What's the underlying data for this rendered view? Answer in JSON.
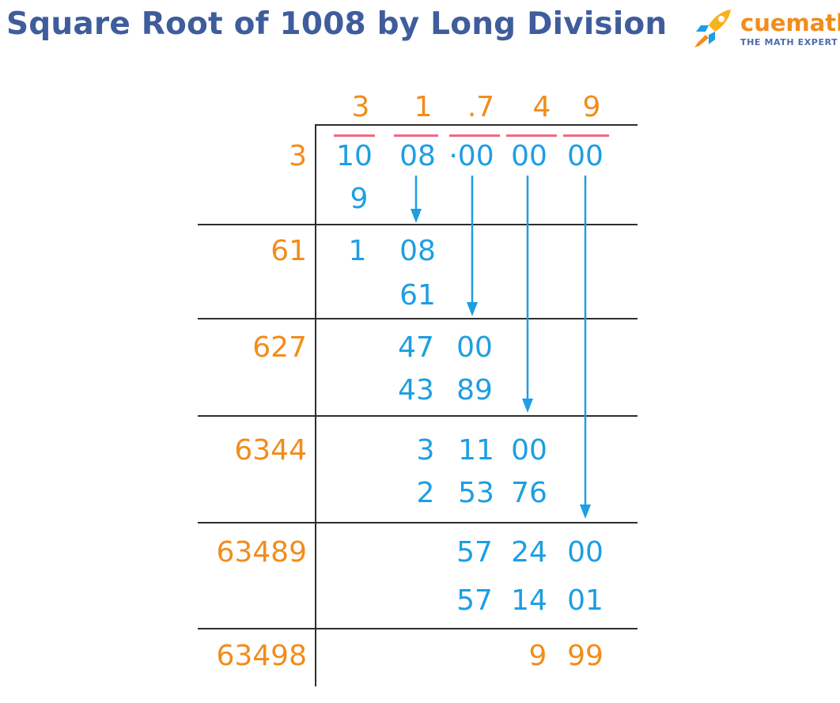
{
  "title": "Square Root of 1008 by Long Division",
  "logo": {
    "name": "cuemath",
    "tagline": "THE MATH EXPERT"
  },
  "quotient": [
    "3",
    "1",
    ".7",
    "4",
    "9"
  ],
  "dividend": [
    "10",
    "08",
    "·00",
    "00",
    "00"
  ],
  "divisors": [
    "3",
    "61",
    "627",
    "6344",
    "63489",
    "63498"
  ],
  "steps": {
    "s1_sub": "9",
    "s2_row1": [
      "1",
      "08"
    ],
    "s2_sub": "61",
    "s3_row1": [
      "47",
      "00"
    ],
    "s3_sub": [
      "43",
      "89"
    ],
    "s4_row1": [
      "3",
      "11",
      "00"
    ],
    "s4_sub": [
      "2",
      "53",
      "76"
    ],
    "s5_row1": [
      "57",
      "24",
      "00"
    ],
    "s5_sub": [
      "57",
      "14",
      "01"
    ],
    "remainder": [
      "9",
      "99"
    ]
  },
  "colors": {
    "title": "#3f5d9c",
    "orange": "#f28c1b",
    "blue": "#1e9ee3",
    "dash": "#f06a82",
    "lines": "#2e2e2e"
  }
}
